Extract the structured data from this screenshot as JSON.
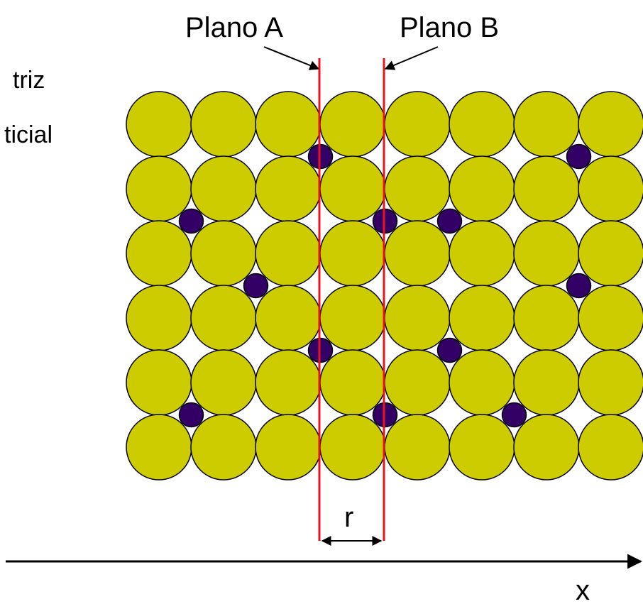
{
  "diagram": {
    "side_labels": [
      "triz",
      "ticial"
    ],
    "plane_a_label": "Plano A",
    "plane_b_label": "Plano B",
    "distance_label": "r",
    "axis_label": "x",
    "grid": {
      "rows": 6,
      "cols": 8
    },
    "interstitials": [
      {
        "row": 0,
        "col": 3
      },
      {
        "row": 0,
        "col": 7
      },
      {
        "row": 1,
        "col": 1
      },
      {
        "row": 1,
        "col": 4
      },
      {
        "row": 1,
        "col": 5
      },
      {
        "row": 2,
        "col": 2
      },
      {
        "row": 2,
        "col": 7
      },
      {
        "row": 3,
        "col": 3
      },
      {
        "row": 3,
        "col": 5
      },
      {
        "row": 4,
        "col": 1
      },
      {
        "row": 4,
        "col": 4
      },
      {
        "row": 4,
        "col": 6
      }
    ],
    "colors": {
      "matrix_atom": "#CCCC00",
      "interstitial_atom": "#330066",
      "plane_line": "#E8141C",
      "outline": "#000000"
    }
  }
}
